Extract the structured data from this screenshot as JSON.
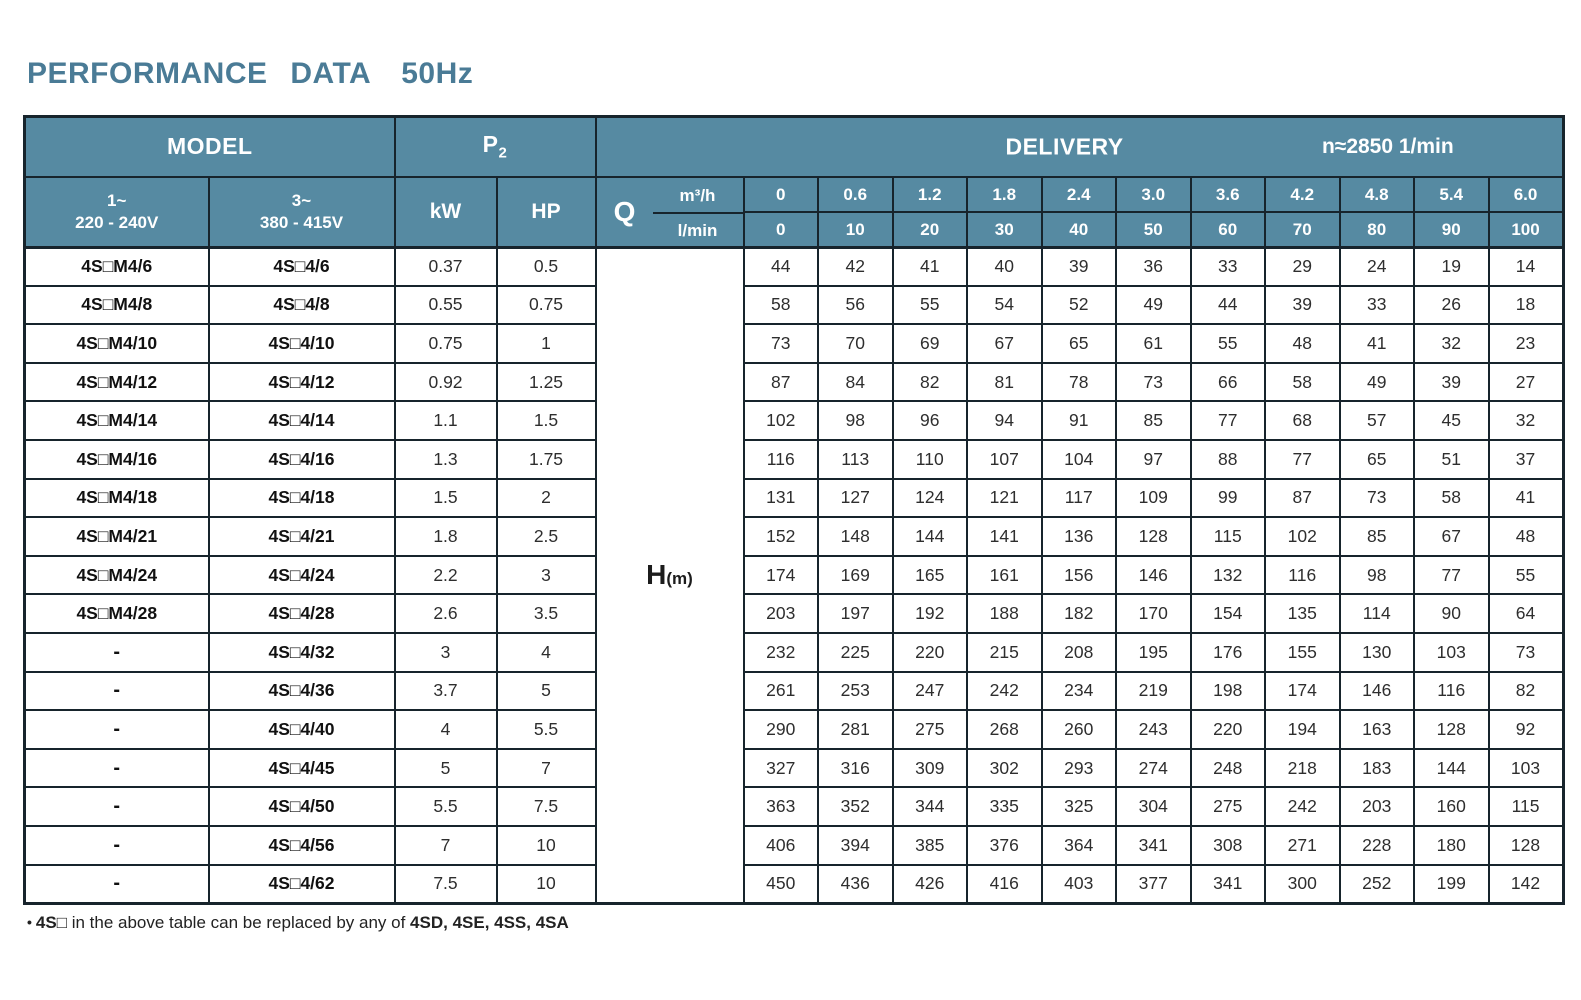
{
  "title": "PERFORMANCE DATA",
  "frequency": "50Hz",
  "colors": {
    "header_bg": "#568aa2",
    "border": "#17242c",
    "title_text": "#4a7b96",
    "header_text": "#ffffff"
  },
  "table": {
    "header": {
      "model": "MODEL",
      "p2_main": "P",
      "p2_sub": "2",
      "delivery": "DELIVERY",
      "speed": "n≈2850 1/min",
      "phase1_line1": "1~",
      "phase1_line2": "220 - 240V",
      "phase3_line1": "3~",
      "phase3_line2": "380 - 415V",
      "kw": "kW",
      "hp": "HP",
      "q": "Q",
      "q_unit_top": "m³/h",
      "q_unit_bottom": "l/min",
      "flow_m3h": [
        "0",
        "0.6",
        "1.2",
        "1.8",
        "2.4",
        "3.0",
        "3.6",
        "4.2",
        "4.8",
        "5.4",
        "6.0"
      ],
      "flow_lmin": [
        "0",
        "10",
        "20",
        "30",
        "40",
        "50",
        "60",
        "70",
        "80",
        "90",
        "100"
      ]
    },
    "h_label": {
      "main": "H",
      "sub": "(m)"
    },
    "rows": [
      {
        "model_1ph": "4S□M4/6",
        "model_3ph": "4S□4/6",
        "kw": "0.37",
        "hp": "0.5",
        "values": [
          "44",
          "42",
          "41",
          "40",
          "39",
          "36",
          "33",
          "29",
          "24",
          "19",
          "14"
        ]
      },
      {
        "model_1ph": "4S□M4/8",
        "model_3ph": "4S□4/8",
        "kw": "0.55",
        "hp": "0.75",
        "values": [
          "58",
          "56",
          "55",
          "54",
          "52",
          "49",
          "44",
          "39",
          "33",
          "26",
          "18"
        ]
      },
      {
        "model_1ph": "4S□M4/10",
        "model_3ph": "4S□4/10",
        "kw": "0.75",
        "hp": "1",
        "values": [
          "73",
          "70",
          "69",
          "67",
          "65",
          "61",
          "55",
          "48",
          "41",
          "32",
          "23"
        ]
      },
      {
        "model_1ph": "4S□M4/12",
        "model_3ph": "4S□4/12",
        "kw": "0.92",
        "hp": "1.25",
        "values": [
          "87",
          "84",
          "82",
          "81",
          "78",
          "73",
          "66",
          "58",
          "49",
          "39",
          "27"
        ]
      },
      {
        "model_1ph": "4S□M4/14",
        "model_3ph": "4S□4/14",
        "kw": "1.1",
        "hp": "1.5",
        "values": [
          "102",
          "98",
          "96",
          "94",
          "91",
          "85",
          "77",
          "68",
          "57",
          "45",
          "32"
        ]
      },
      {
        "model_1ph": "4S□M4/16",
        "model_3ph": "4S□4/16",
        "kw": "1.3",
        "hp": "1.75",
        "values": [
          "116",
          "113",
          "110",
          "107",
          "104",
          "97",
          "88",
          "77",
          "65",
          "51",
          "37"
        ]
      },
      {
        "model_1ph": "4S□M4/18",
        "model_3ph": "4S□4/18",
        "kw": "1.5",
        "hp": "2",
        "values": [
          "131",
          "127",
          "124",
          "121",
          "117",
          "109",
          "99",
          "87",
          "73",
          "58",
          "41"
        ]
      },
      {
        "model_1ph": "4S□M4/21",
        "model_3ph": "4S□4/21",
        "kw": "1.8",
        "hp": "2.5",
        "values": [
          "152",
          "148",
          "144",
          "141",
          "136",
          "128",
          "115",
          "102",
          "85",
          "67",
          "48"
        ]
      },
      {
        "model_1ph": "4S□M4/24",
        "model_3ph": "4S□4/24",
        "kw": "2.2",
        "hp": "3",
        "values": [
          "174",
          "169",
          "165",
          "161",
          "156",
          "146",
          "132",
          "116",
          "98",
          "77",
          "55"
        ]
      },
      {
        "model_1ph": "4S□M4/28",
        "model_3ph": "4S□4/28",
        "kw": "2.6",
        "hp": "3.5",
        "values": [
          "203",
          "197",
          "192",
          "188",
          "182",
          "170",
          "154",
          "135",
          "114",
          "90",
          "64"
        ]
      },
      {
        "model_1ph": "-",
        "model_3ph": "4S□4/32",
        "kw": "3",
        "hp": "4",
        "values": [
          "232",
          "225",
          "220",
          "215",
          "208",
          "195",
          "176",
          "155",
          "130",
          "103",
          "73"
        ]
      },
      {
        "model_1ph": "-",
        "model_3ph": "4S□4/36",
        "kw": "3.7",
        "hp": "5",
        "values": [
          "261",
          "253",
          "247",
          "242",
          "234",
          "219",
          "198",
          "174",
          "146",
          "116",
          "82"
        ]
      },
      {
        "model_1ph": "-",
        "model_3ph": "4S□4/40",
        "kw": "4",
        "hp": "5.5",
        "values": [
          "290",
          "281",
          "275",
          "268",
          "260",
          "243",
          "220",
          "194",
          "163",
          "128",
          "92"
        ]
      },
      {
        "model_1ph": "-",
        "model_3ph": "4S□4/45",
        "kw": "5",
        "hp": "7",
        "values": [
          "327",
          "316",
          "309",
          "302",
          "293",
          "274",
          "248",
          "218",
          "183",
          "144",
          "103"
        ]
      },
      {
        "model_1ph": "-",
        "model_3ph": "4S□4/50",
        "kw": "5.5",
        "hp": "7.5",
        "values": [
          "363",
          "352",
          "344",
          "335",
          "325",
          "304",
          "275",
          "242",
          "203",
          "160",
          "115"
        ]
      },
      {
        "model_1ph": "-",
        "model_3ph": "4S□4/56",
        "kw": "7",
        "hp": "10",
        "values": [
          "406",
          "394",
          "385",
          "376",
          "364",
          "341",
          "308",
          "271",
          "228",
          "180",
          "128"
        ]
      },
      {
        "model_1ph": "-",
        "model_3ph": "4S□4/62",
        "kw": "7.5",
        "hp": "10",
        "values": [
          "450",
          "436",
          "426",
          "416",
          "403",
          "377",
          "341",
          "300",
          "252",
          "199",
          "142"
        ]
      }
    ]
  },
  "footnote": {
    "bullet": "•",
    "lead": "4S□",
    "body": " in the above table can be replaced by any of ",
    "models": "4SD, 4SE, 4SS, 4SA"
  }
}
